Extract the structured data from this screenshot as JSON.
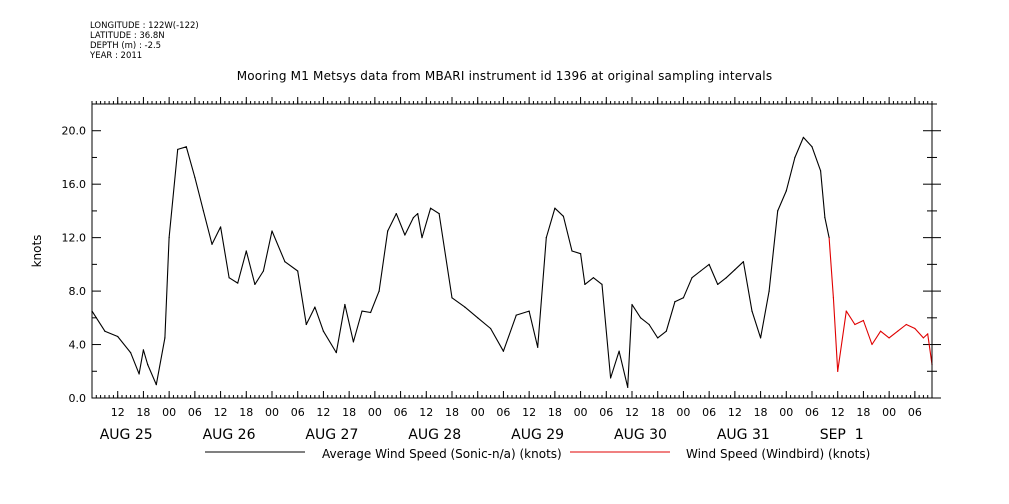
{
  "meta": {
    "longitude": "LONGITUDE : 122W(-122)",
    "latitude": "LATITUDE : 36.8N",
    "depth": "DEPTH (m) : -2.5",
    "year": "YEAR : 2011"
  },
  "colors": {
    "average": "#000000",
    "windbird": "#e00000"
  },
  "chart_data": {
    "type": "line",
    "title": "Mooring M1 Metsys data from MBARI instrument id 1396 at original sampling intervals",
    "xlabel": "",
    "ylabel": "knots",
    "ylim": [
      0,
      22
    ],
    "xlim": [
      "2011-08-24T06:00",
      "2011-09-01T10:00"
    ],
    "yticks": [
      0,
      4,
      8,
      12,
      16,
      20
    ],
    "ytick_labels": [
      "0.0",
      "4.0",
      "8.0",
      "12.0",
      "16.0",
      "20.0"
    ],
    "x_hour_ticks": [
      {
        "t": "2011-08-24T12:00",
        "label": "12"
      },
      {
        "t": "2011-08-24T18:00",
        "label": "18"
      },
      {
        "t": "2011-08-25T00:00",
        "label": "00"
      },
      {
        "t": "2011-08-25T06:00",
        "label": "06"
      },
      {
        "t": "2011-08-25T12:00",
        "label": "12"
      },
      {
        "t": "2011-08-25T18:00",
        "label": "18"
      },
      {
        "t": "2011-08-26T00:00",
        "label": "00"
      },
      {
        "t": "2011-08-26T06:00",
        "label": "06"
      },
      {
        "t": "2011-08-26T12:00",
        "label": "12"
      },
      {
        "t": "2011-08-26T18:00",
        "label": "18"
      },
      {
        "t": "2011-08-27T00:00",
        "label": "00"
      },
      {
        "t": "2011-08-27T06:00",
        "label": "06"
      },
      {
        "t": "2011-08-27T12:00",
        "label": "12"
      },
      {
        "t": "2011-08-27T18:00",
        "label": "18"
      },
      {
        "t": "2011-08-28T00:00",
        "label": "00"
      },
      {
        "t": "2011-08-28T06:00",
        "label": "06"
      },
      {
        "t": "2011-08-28T12:00",
        "label": "12"
      },
      {
        "t": "2011-08-28T18:00",
        "label": "18"
      },
      {
        "t": "2011-08-29T00:00",
        "label": "00"
      },
      {
        "t": "2011-08-29T06:00",
        "label": "06"
      },
      {
        "t": "2011-08-29T12:00",
        "label": "12"
      },
      {
        "t": "2011-08-29T18:00",
        "label": "18"
      },
      {
        "t": "2011-08-30T00:00",
        "label": "00"
      },
      {
        "t": "2011-08-30T06:00",
        "label": "06"
      },
      {
        "t": "2011-08-30T12:00",
        "label": "12"
      },
      {
        "t": "2011-08-30T18:00",
        "label": "18"
      },
      {
        "t": "2011-08-31T00:00",
        "label": "00"
      },
      {
        "t": "2011-08-31T06:00",
        "label": "06"
      },
      {
        "t": "2011-08-31T12:00",
        "label": "12"
      },
      {
        "t": "2011-08-31T18:00",
        "label": "18"
      },
      {
        "t": "2011-09-01T00:00",
        "label": "00"
      },
      {
        "t": "2011-09-01T06:00",
        "label": "06"
      }
    ],
    "x_day_labels": [
      {
        "t": "2011-08-24T12:00",
        "label": "AUG 25"
      },
      {
        "t": "2011-08-25T12:00",
        "label": "AUG 26"
      },
      {
        "t": "2011-08-26T12:00",
        "label": "AUG 27"
      },
      {
        "t": "2011-08-27T12:00",
        "label": "AUG 28"
      },
      {
        "t": "2011-08-28T12:00",
        "label": "AUG 29"
      },
      {
        "t": "2011-08-29T12:00",
        "label": "AUG 30"
      },
      {
        "t": "2011-08-30T12:00",
        "label": "AUG 31"
      },
      {
        "t": "2011-08-31T12:00",
        "label": "SEP  1"
      }
    ],
    "grid": false,
    "legend_position": "bottom",
    "series": [
      {
        "name": "Average Wind Speed (Sonic-n/a) (knots)",
        "color": "#000000",
        "x": [
          "2011-08-24T06:00",
          "2011-08-24T09:00",
          "2011-08-24T12:00",
          "2011-08-24T15:00",
          "2011-08-24T17:00",
          "2011-08-24T18:00",
          "2011-08-24T19:00",
          "2011-08-24T21:00",
          "2011-08-24T23:00",
          "2011-08-25T00:00",
          "2011-08-25T02:00",
          "2011-08-25T04:00",
          "2011-08-25T06:00",
          "2011-08-25T08:00",
          "2011-08-25T10:00",
          "2011-08-25T12:00",
          "2011-08-25T14:00",
          "2011-08-25T16:00",
          "2011-08-25T18:00",
          "2011-08-25T20:00",
          "2011-08-25T22:00",
          "2011-08-26T00:00",
          "2011-08-26T03:00",
          "2011-08-26T06:00",
          "2011-08-26T08:00",
          "2011-08-26T10:00",
          "2011-08-26T12:00",
          "2011-08-26T15:00",
          "2011-08-26T17:00",
          "2011-08-26T19:00",
          "2011-08-26T21:00",
          "2011-08-26T23:00",
          "2011-08-27T01:00",
          "2011-08-27T03:00",
          "2011-08-27T05:00",
          "2011-08-27T07:00",
          "2011-08-27T09:00",
          "2011-08-27T10:00",
          "2011-08-27T11:00",
          "2011-08-27T13:00",
          "2011-08-27T15:00",
          "2011-08-27T18:00",
          "2011-08-27T21:00",
          "2011-08-28T00:00",
          "2011-08-28T03:00",
          "2011-08-28T06:00",
          "2011-08-28T09:00",
          "2011-08-28T12:00",
          "2011-08-28T14:00",
          "2011-08-28T16:00",
          "2011-08-28T18:00",
          "2011-08-28T20:00",
          "2011-08-28T22:00",
          "2011-08-29T00:00",
          "2011-08-29T01:00",
          "2011-08-29T03:00",
          "2011-08-29T05:00",
          "2011-08-29T07:00",
          "2011-08-29T09:00",
          "2011-08-29T11:00",
          "2011-08-29T12:00",
          "2011-08-29T14:00",
          "2011-08-29T16:00",
          "2011-08-29T18:00",
          "2011-08-29T20:00",
          "2011-08-29T22:00",
          "2011-08-30T00:00",
          "2011-08-30T02:00",
          "2011-08-30T04:00",
          "2011-08-30T06:00",
          "2011-08-30T08:00",
          "2011-08-30T10:00",
          "2011-08-30T12:00",
          "2011-08-30T14:00",
          "2011-08-30T16:00",
          "2011-08-30T18:00",
          "2011-08-30T20:00",
          "2011-08-30T22:00",
          "2011-08-31T00:00",
          "2011-08-31T02:00",
          "2011-08-31T04:00",
          "2011-08-31T06:00",
          "2011-08-31T08:00",
          "2011-08-31T09:00",
          "2011-08-31T10:00"
        ],
        "values": [
          6.5,
          5.0,
          4.6,
          3.4,
          1.8,
          3.6,
          2.5,
          1.0,
          4.5,
          12.0,
          18.6,
          18.8,
          16.5,
          14.0,
          11.5,
          12.8,
          9.0,
          8.6,
          11.0,
          8.5,
          9.5,
          12.5,
          10.2,
          9.5,
          5.5,
          6.8,
          5.0,
          3.4,
          7.0,
          4.2,
          6.5,
          6.4,
          8.0,
          12.5,
          13.8,
          12.2,
          13.5,
          13.8,
          12.0,
          14.2,
          13.8,
          7.5,
          6.8,
          6.0,
          5.2,
          3.5,
          6.2,
          6.5,
          3.8,
          12.0,
          14.2,
          13.6,
          11.0,
          10.8,
          8.5,
          9.0,
          8.5,
          1.5,
          3.5,
          0.8,
          7.0,
          6.0,
          5.5,
          4.5,
          5.0,
          7.2,
          7.5,
          9.0,
          9.5,
          10.0,
          8.5,
          9.0,
          9.6,
          10.2,
          6.5,
          4.5,
          8.0,
          14.0,
          15.5,
          18.0,
          19.5,
          18.8,
          17.0,
          13.5,
          12.0
        ]
      },
      {
        "name": "Wind Speed (Windbird) (knots)",
        "color": "#e00000",
        "x": [
          "2011-08-31T11:00",
          "2011-08-31T12:00",
          "2011-08-31T14:00",
          "2011-08-31T16:00",
          "2011-08-31T18:00",
          "2011-08-31T20:00",
          "2011-08-31T22:00",
          "2011-09-01T00:00",
          "2011-09-01T02:00",
          "2011-09-01T04:00",
          "2011-09-01T06:00",
          "2011-09-01T08:00",
          "2011-09-01T09:00",
          "2011-09-01T10:00"
        ],
        "values": [
          7.5,
          2.0,
          6.5,
          5.5,
          5.8,
          4.0,
          5.0,
          4.5,
          5.0,
          5.5,
          5.2,
          4.5,
          4.8,
          2.5
        ]
      }
    ]
  }
}
